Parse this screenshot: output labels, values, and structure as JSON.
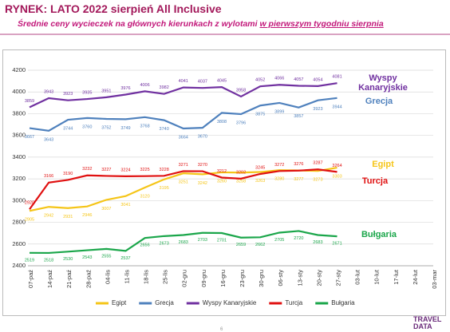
{
  "header": {
    "title": "RYNEK: LATO 2022 sierpień All Inclusive",
    "subtitle": "Średnie ceny wycieczek na głównych kierunkach z wylotami",
    "subtitle_emphasis": "w pierwszym tygodniu sierpnia"
  },
  "chart_data": {
    "type": "line",
    "categories": [
      "07-paź",
      "14-paź",
      "21-paź",
      "28-paź",
      "04-lis",
      "11-lis",
      "18-lis",
      "25-lis",
      "02-gru",
      "09-gru",
      "16-gru",
      "23-gru",
      "30-gru",
      "06-sty",
      "13-sty",
      "20-sty",
      "27-sty",
      "03-lut",
      "10-lut",
      "17-lut",
      "24-lut",
      "03-mar"
    ],
    "ylim": [
      2400,
      4200
    ],
    "yticks": [
      2400,
      2600,
      2800,
      3000,
      3200,
      3400,
      3600,
      3800,
      4000,
      4200
    ],
    "grid": true,
    "legend": "bottom",
    "series": [
      {
        "name": "Egipt",
        "color": "#f5c518",
        "values": [
          2905,
          2942,
          2931,
          2946,
          3007,
          3041,
          3120,
          3195,
          3251,
          3242,
          3260,
          3258,
          3263,
          3280,
          3277,
          3273,
          3303,
          null,
          null,
          null,
          null,
          null
        ]
      },
      {
        "name": "Grecja",
        "color": "#4f81bd",
        "values": [
          3667,
          3643,
          3744,
          3760,
          3752,
          3749,
          3768,
          3740,
          3664,
          3670,
          3808,
          3796,
          3875,
          3899,
          3857,
          3923,
          3944,
          null,
          null,
          null,
          null,
          null
        ]
      },
      {
        "name": "Wyspy Kanaryjskie",
        "color": "#7030a0",
        "values": [
          3859,
          3943,
          3923,
          3935,
          3951,
          3976,
          4006,
          3982,
          4041,
          4037,
          4045,
          3958,
          4052,
          4066,
          4057,
          4054,
          4081,
          null,
          null,
          null,
          null,
          null
        ]
      },
      {
        "name": "Turcja",
        "color": "#e01010",
        "values": [
          2920,
          3166,
          3190,
          3232,
          3227,
          3224,
          3225,
          3228,
          3271,
          3270,
          3212,
          3202,
          3245,
          3272,
          3276,
          3287,
          3264,
          null,
          null,
          null,
          null,
          null
        ]
      },
      {
        "name": "Bułgaria",
        "color": "#1aa64a",
        "values": [
          2519,
          2518,
          2530,
          2543,
          2555,
          2537,
          2656,
          2673,
          2683,
          2703,
          2701,
          2659,
          2662,
          2705,
          2720,
          2683,
          2671,
          null,
          null,
          null,
          null,
          null
        ]
      }
    ]
  },
  "footer": {
    "page": "6",
    "logo": "TRAVEL DATA"
  }
}
